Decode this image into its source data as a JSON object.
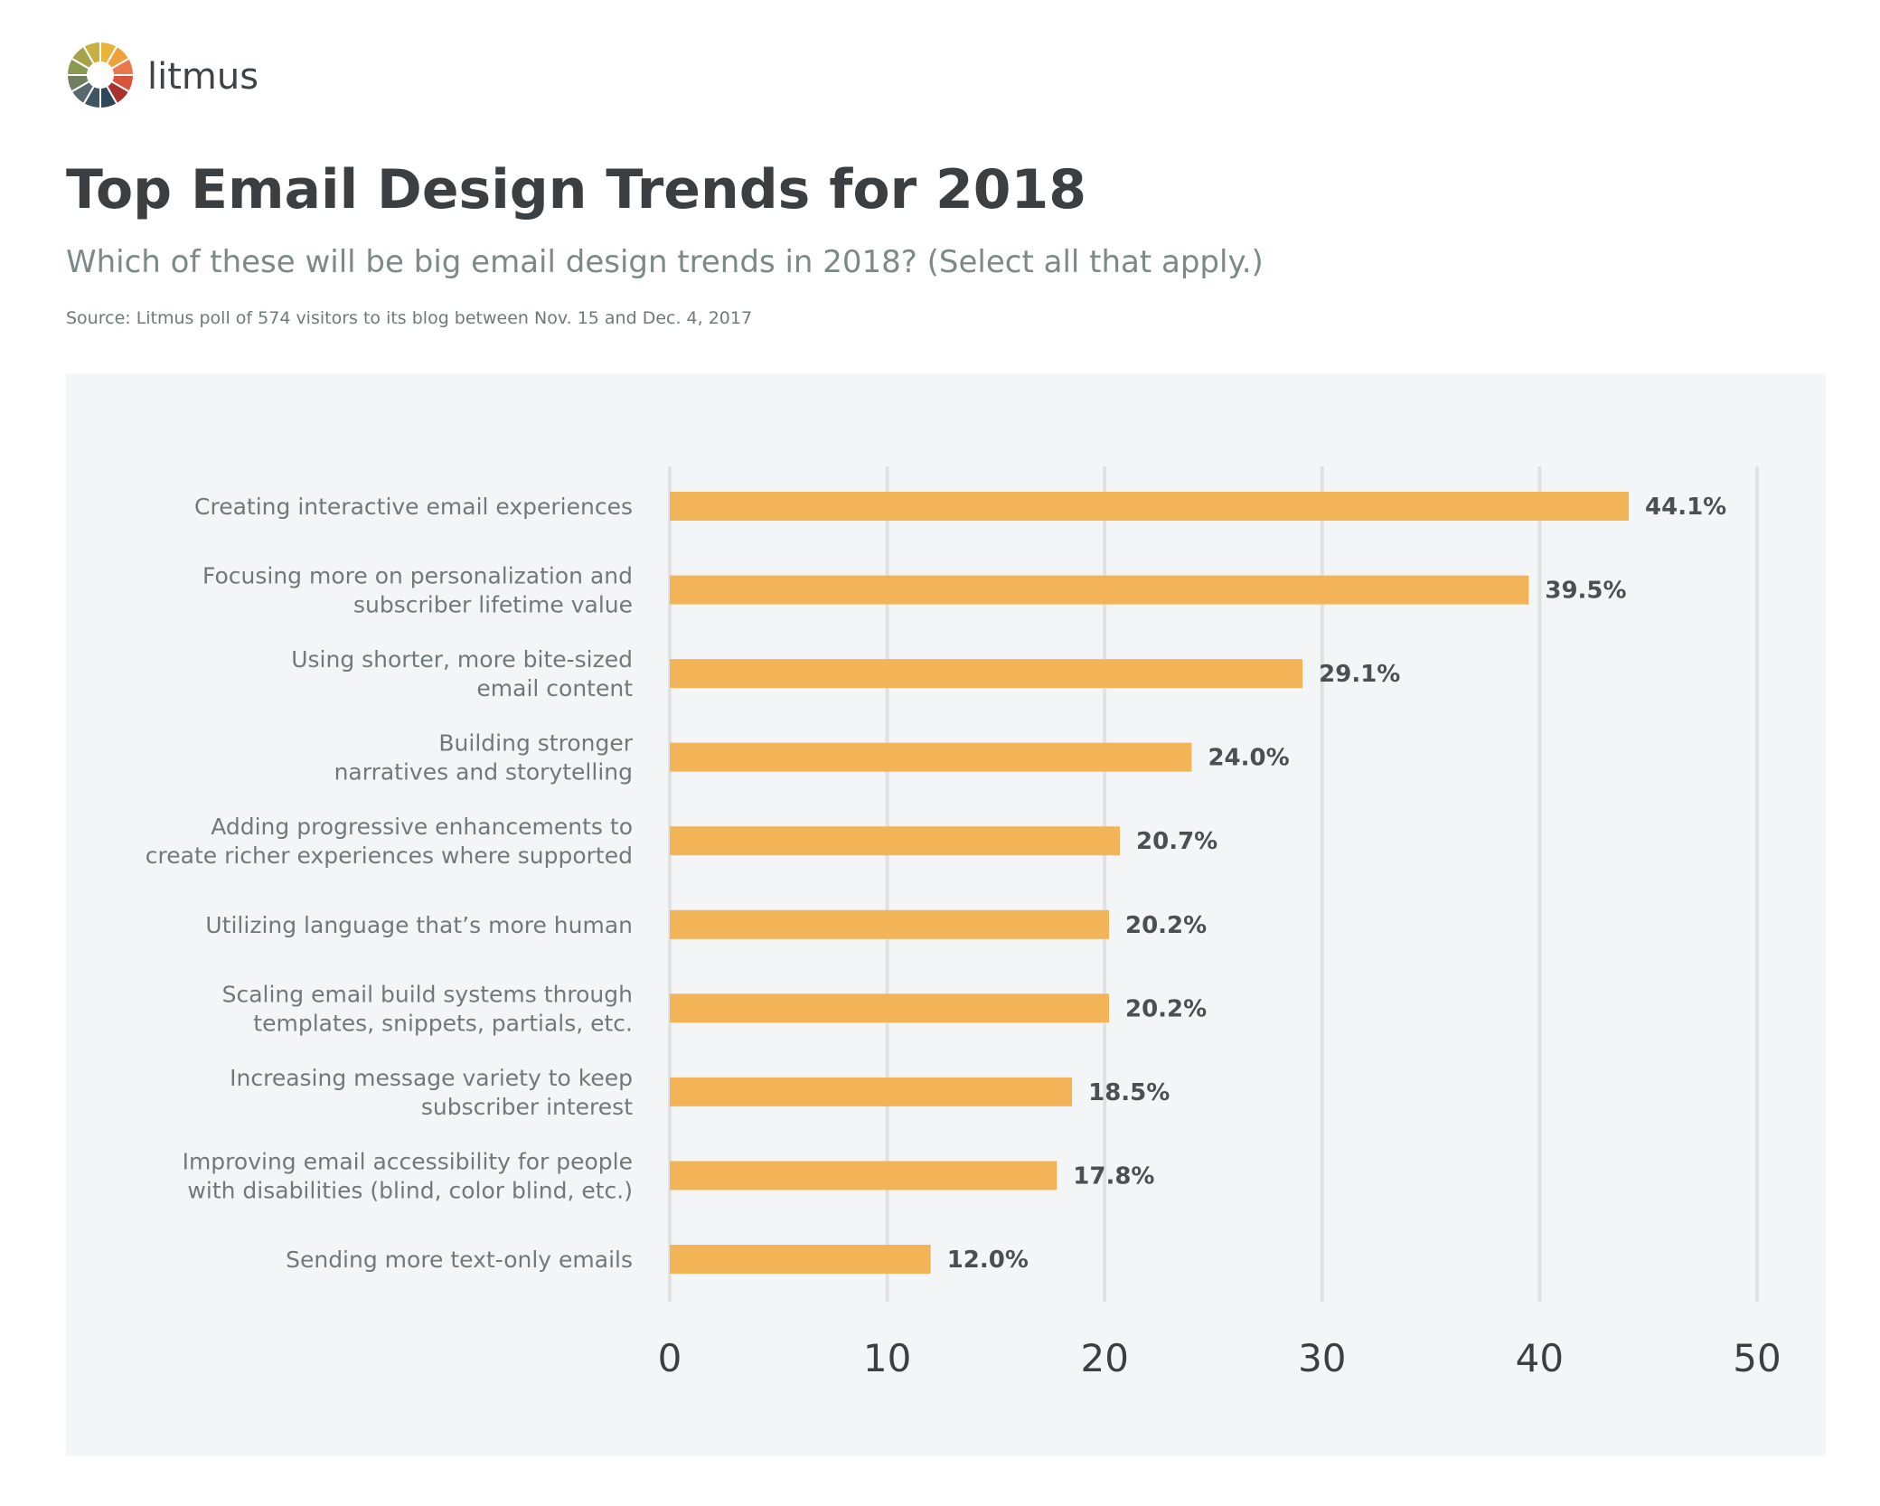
{
  "logo": "litmus",
  "chart_data": {
    "type": "bar",
    "orientation": "horizontal",
    "title": "Top Email Design Trends for 2018",
    "subtitle": "Which of these will be big email design trends in 2018? (Select all that apply.)",
    "source": "Source: Litmus poll of 574 visitors to its blog between Nov. 15 and Dec. 4, 2017",
    "categories": [
      [
        "Creating interactive email experiences"
      ],
      [
        "Focusing more on personalization and",
        "subscriber lifetime value"
      ],
      [
        "Using shorter, more bite-sized",
        "email content"
      ],
      [
        "Building stronger",
        "narratives and storytelling"
      ],
      [
        "Adding progressive enhancements to",
        "create richer experiences where supported"
      ],
      [
        "Utilizing language that’s more human"
      ],
      [
        "Scaling email build systems through",
        "templates, snippets, partials, etc."
      ],
      [
        "Increasing message variety to keep",
        "subscriber interest"
      ],
      [
        "Improving email accessibility for people",
        "with disabilities (blind, color blind, etc.)"
      ],
      [
        "Sending more text-only emails"
      ]
    ],
    "values": [
      44.1,
      39.5,
      29.1,
      24.0,
      20.7,
      20.2,
      20.2,
      18.5,
      17.8,
      12.0
    ],
    "value_labels": [
      "44.1%",
      "39.5%",
      "29.1%",
      "24.0%",
      "20.7%",
      "20.2%",
      "20.2%",
      "18.5%",
      "17.8%",
      "12.0%"
    ],
    "color": "#f3b357",
    "xlim": [
      0,
      50
    ],
    "xticks": [
      0,
      10,
      20,
      30,
      40,
      50
    ],
    "grid": true
  }
}
